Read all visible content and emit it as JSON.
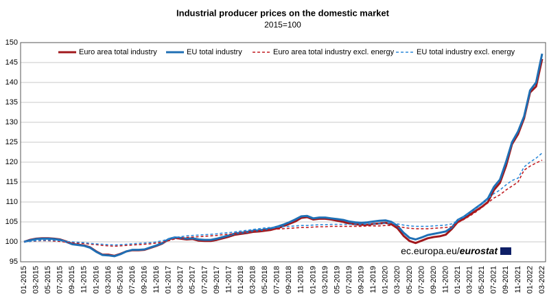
{
  "chart_data": {
    "type": "line",
    "title": "Industrial producer prices on the domestic market",
    "subtitle": "2015=100",
    "source": {
      "prefix": "ec.europa.eu/",
      "brand": "eurostat"
    },
    "categories": [
      "01-2015",
      null,
      "03-2015",
      null,
      "05-2015",
      null,
      "07-2015",
      null,
      "09-2015",
      null,
      "11-2015",
      null,
      "01-2016",
      null,
      "03-2016",
      null,
      "05-2016",
      null,
      "07-2016",
      null,
      "09-2016",
      null,
      "11-2016",
      null,
      "01-2017",
      null,
      "03-2017",
      null,
      "05-2017",
      null,
      "07-2017",
      null,
      "09-2017",
      null,
      "11-2017",
      null,
      "01-2018",
      null,
      "03-2018",
      null,
      "05-2018",
      null,
      "07-2018",
      null,
      "09-2018",
      null,
      "11-2018",
      null,
      "01-2019",
      null,
      "03-2019",
      null,
      "05-2019",
      null,
      "07-2019",
      null,
      "09-2019",
      null,
      "11-2019",
      null,
      "01-2020",
      null,
      "03-2020",
      null,
      "05-2020",
      null,
      "07-2020",
      null,
      "09-2020",
      null,
      "11-2020",
      null,
      "01-2021",
      null,
      "03-2021",
      null,
      "05-2021",
      null,
      "07-2021",
      null,
      "09-2021",
      null,
      "11-2021",
      null,
      "01-2022",
      null,
      "03-2022"
    ],
    "series": [
      {
        "name": "Euro area total industry",
        "color": "#a0181c",
        "style": "solid",
        "values": [
          100.0,
          100.5,
          100.8,
          100.9,
          100.9,
          100.8,
          100.6,
          100.1,
          99.5,
          99.3,
          99.1,
          98.6,
          97.6,
          96.8,
          96.8,
          96.5,
          97.0,
          97.6,
          97.9,
          97.9,
          98.0,
          98.5,
          99.0,
          99.6,
          100.6,
          101.0,
          100.8,
          100.6,
          100.7,
          100.3,
          100.2,
          100.2,
          100.5,
          100.9,
          101.3,
          101.8,
          102.0,
          102.2,
          102.5,
          102.6,
          102.8,
          103.0,
          103.4,
          103.9,
          104.5,
          105.1,
          106.0,
          106.2,
          105.6,
          105.8,
          105.8,
          105.6,
          105.3,
          105.0,
          104.6,
          104.4,
          104.3,
          104.3,
          104.5,
          104.6,
          104.8,
          104.4,
          103.4,
          101.5,
          100.2,
          99.7,
          100.3,
          100.9,
          101.2,
          101.4,
          101.8,
          103.2,
          105.0,
          105.8,
          106.8,
          107.8,
          108.8,
          110.0,
          113.0,
          114.8,
          119.0,
          124.5,
          127.0,
          131.0,
          137.5,
          139.0,
          145.9
        ]
      },
      {
        "name": "EU total industry",
        "color": "#1f6fb4",
        "style": "solid",
        "values": [
          100.0,
          100.4,
          100.7,
          100.8,
          100.8,
          100.7,
          100.5,
          100.0,
          99.4,
          99.2,
          99.0,
          98.5,
          97.5,
          96.7,
          96.6,
          96.4,
          96.9,
          97.6,
          98.0,
          98.0,
          98.1,
          98.6,
          99.1,
          99.7,
          100.7,
          101.1,
          101.0,
          100.8,
          100.9,
          100.6,
          100.5,
          100.5,
          100.8,
          101.2,
          101.6,
          102.1,
          102.3,
          102.5,
          102.8,
          102.9,
          103.1,
          103.4,
          103.8,
          104.3,
          104.9,
          105.6,
          106.4,
          106.5,
          105.9,
          106.1,
          106.1,
          105.9,
          105.7,
          105.5,
          105.1,
          104.9,
          104.8,
          104.9,
          105.1,
          105.3,
          105.4,
          105.0,
          104.0,
          102.3,
          101.0,
          100.6,
          101.1,
          101.7,
          102.0,
          102.3,
          102.6,
          103.6,
          105.5,
          106.3,
          107.4,
          108.5,
          109.6,
          110.9,
          113.8,
          115.6,
          120.0,
          125.0,
          127.7,
          131.5,
          138.0,
          140.0,
          147.2
        ]
      },
      {
        "name": "Euro area total industry excl. energy",
        "color": "#c0191e",
        "style": "dashed",
        "values": [
          100.0,
          100.1,
          100.2,
          100.3,
          100.3,
          100.2,
          100.1,
          99.9,
          99.8,
          99.7,
          99.6,
          99.4,
          99.3,
          99.1,
          99.0,
          98.9,
          99.0,
          99.1,
          99.2,
          99.3,
          99.4,
          99.5,
          99.7,
          99.9,
          100.3,
          100.7,
          100.9,
          101.1,
          101.2,
          101.3,
          101.4,
          101.5,
          101.6,
          101.8,
          101.9,
          102.1,
          102.3,
          102.5,
          102.7,
          102.8,
          103.0,
          103.1,
          103.2,
          103.3,
          103.4,
          103.5,
          103.6,
          103.6,
          103.7,
          103.8,
          103.8,
          103.9,
          103.9,
          103.9,
          103.9,
          103.9,
          103.9,
          104.0,
          104.0,
          104.0,
          104.1,
          104.1,
          103.9,
          103.6,
          103.4,
          103.3,
          103.3,
          103.3,
          103.4,
          103.5,
          103.6,
          103.8,
          104.8,
          105.6,
          106.5,
          107.5,
          108.6,
          109.8,
          111.0,
          111.8,
          113.0,
          114.0,
          115.0,
          118.0,
          119.0,
          119.8,
          120.5
        ]
      },
      {
        "name": "EU total industry excl. energy",
        "color": "#2b88d8",
        "style": "dashed",
        "values": [
          100.0,
          100.1,
          100.3,
          100.4,
          100.4,
          100.4,
          100.3,
          100.1,
          100.0,
          99.9,
          99.8,
          99.6,
          99.5,
          99.4,
          99.3,
          99.2,
          99.3,
          99.4,
          99.5,
          99.6,
          99.7,
          99.8,
          100.0,
          100.3,
          100.7,
          101.1,
          101.3,
          101.5,
          101.6,
          101.7,
          101.8,
          101.9,
          102.0,
          102.2,
          102.3,
          102.5,
          102.7,
          102.9,
          103.1,
          103.3,
          103.5,
          103.6,
          103.7,
          103.8,
          103.9,
          104.0,
          104.1,
          104.1,
          104.2,
          104.3,
          104.3,
          104.4,
          104.4,
          104.4,
          104.4,
          104.4,
          104.4,
          104.5,
          104.5,
          104.6,
          104.7,
          104.7,
          104.5,
          104.2,
          104.0,
          103.9,
          103.9,
          103.9,
          104.0,
          104.1,
          104.2,
          104.5,
          105.4,
          106.3,
          107.3,
          108.4,
          109.6,
          110.9,
          112.1,
          113.0,
          114.3,
          115.4,
          116.0,
          118.8,
          120.0,
          121.0,
          122.3
        ]
      }
    ],
    "ylim": [
      95,
      150
    ],
    "yticks": [
      95,
      100,
      105,
      110,
      115,
      120,
      125,
      130,
      135,
      140,
      145,
      150
    ],
    "grid": true,
    "legend": "top"
  }
}
